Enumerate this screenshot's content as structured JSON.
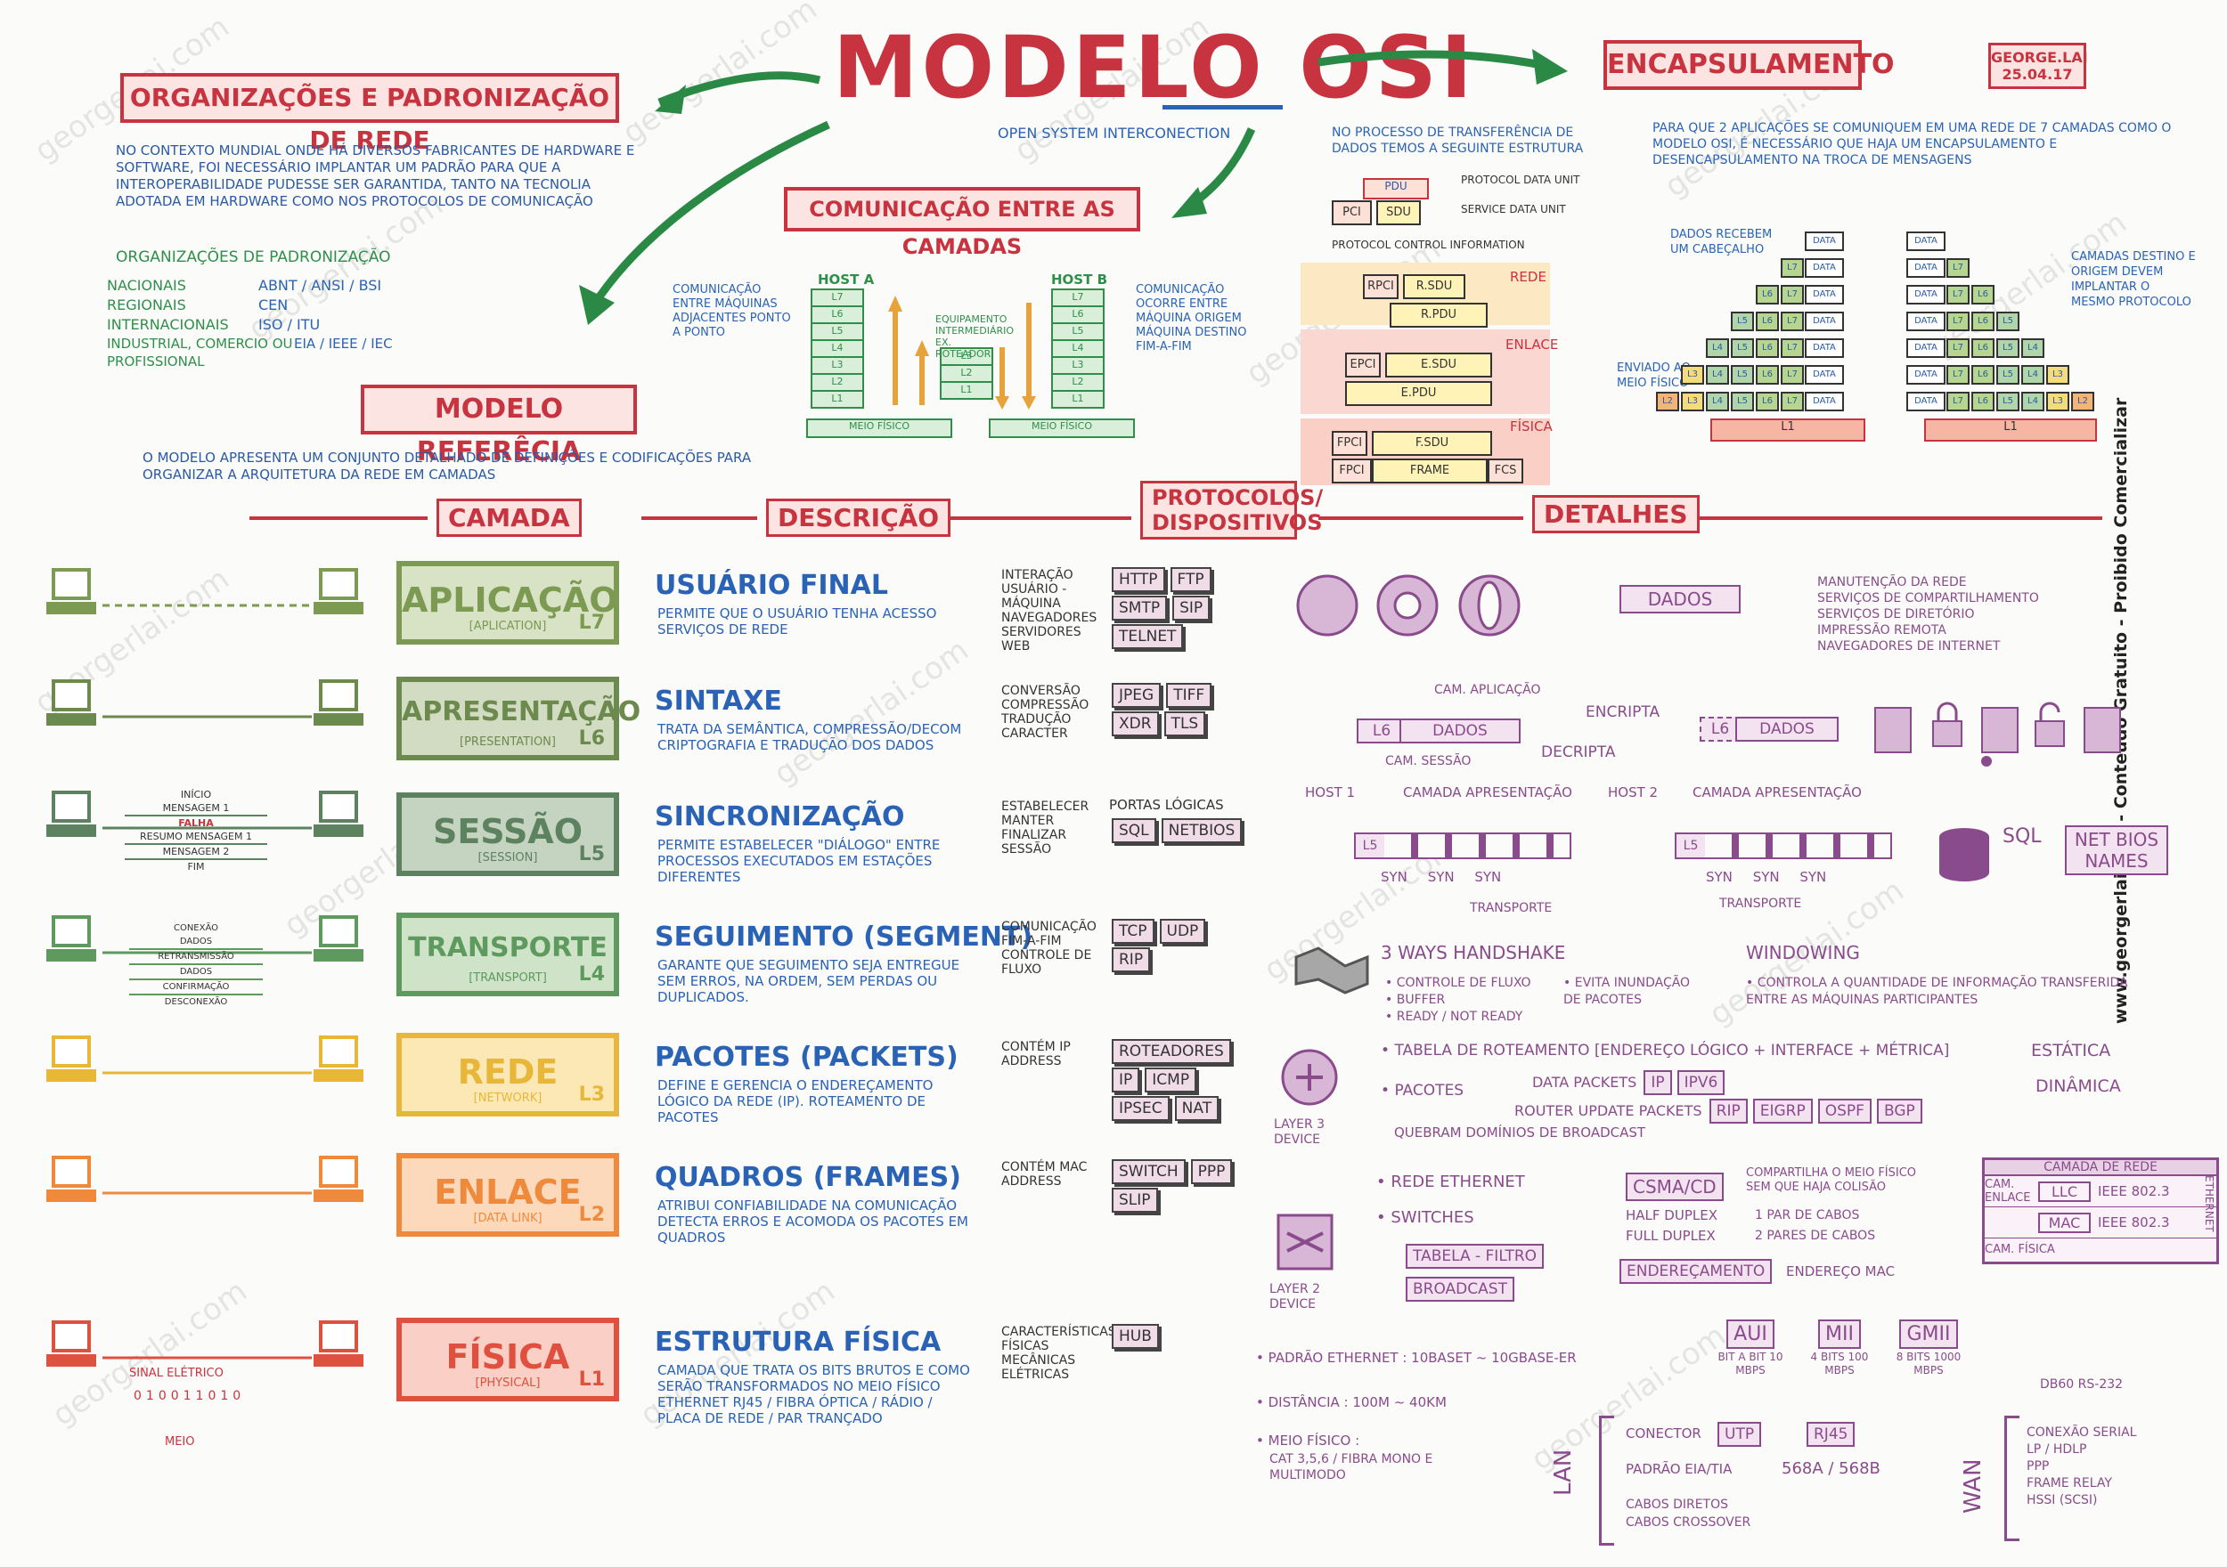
{
  "title": "MODELO OSI",
  "subtitle": "OPEN SYSTEM INTERCONECTION",
  "author": {
    "name": "GEORGE.LAI",
    "date": "25.04.17"
  },
  "side_credit": "www.georgerlai.com - Conteúdo Gratuito - Proibido Comercializar",
  "watermark": "georgerlai.com",
  "colors": {
    "red": "#c7343f",
    "blue": "#2a63b5",
    "purple": "#8a4b8c",
    "green": "#2f8f4a"
  },
  "org": {
    "title": "ORGANIZAÇÕES E PADRONIZAÇÃO DE REDE",
    "text": "NO CONTEXTO MUNDIAL ONDE HÁ DIVERSOS FABRICANTES DE HARDWARE E SOFTWARE, FOI NECESSÁRIO IMPLANTAR UM PADRÃO PARA QUE A INTEROPERABILIDADE PUDESSE SER GARANTIDA, TANTO NA TECNOLIA ADOTADA EM HARDWARE COMO NOS PROTOCOLOS DE COMUNICAÇÃO",
    "list_title": "ORGANIZAÇÕES DE PADRONIZAÇÃO",
    "items": [
      {
        "label": "NACIONAIS",
        "value": "ABNT / ANSI / BSI"
      },
      {
        "label": "REGIONAIS",
        "value": "CEN"
      },
      {
        "label": "INTERNACIONAIS",
        "value": "ISO / ITU"
      },
      {
        "label": "INDUSTRIAL, COMERCIO OU PROFISSIONAL",
        "value": "EIA / IEEE / IEC"
      }
    ]
  },
  "comm": {
    "title": "COMUNICAÇÃO ENTRE AS CAMADAS",
    "left_note": "COMUNICAÇÃO ENTRE MÁQUINAS ADJACENTES PONTO A PONTO",
    "host_a": "HOST A",
    "host_b": "HOST B",
    "layers": [
      "L7",
      "L6",
      "L5",
      "L4",
      "L3",
      "L2",
      "L1"
    ],
    "router_note": "EQUIPAMENTO INTERMEDIÁRIO EX. ROTEADOR",
    "router_layers": [
      "L3",
      "L2",
      "L1"
    ],
    "meio": "MEIO FÍSICO",
    "right_note": "COMUNICAÇÃO OCORRE ENTRE MÁQUINA ORIGEM MÁQUINA DESTINO FIM-A-FIM"
  },
  "ref": {
    "title": "MODELO REFERÊCIA",
    "text": "O MODELO APRESENTA UM CONJUNTO DETALHADO DE DEFINIÇÕES E CODIFICAÇÕES PARA ORGANIZAR A ARQUITETURA DA REDE EM CAMADAS"
  },
  "pdu": {
    "intro": "NO PROCESSO DE TRANSFERÊNCIA DE DADOS TEMOS A SEGUINTE ESTRUTURA",
    "pdu": "PDU",
    "pdu_label": "PROTOCOL DATA UNIT",
    "pci": "PCI",
    "sdu": "SDU",
    "sdu_label": "SERVICE DATA UNIT",
    "pci_label": "PROTOCOL CONTROL INFORMATION",
    "rede": "REDE",
    "enlace": "ENLACE",
    "fisica": "FÍSICA",
    "rpci": "RPCI",
    "rsdu": "R.SDU",
    "rpdu": "R.PDU",
    "epci": "EPCI",
    "esdu": "E.SDU",
    "epdu": "E.PDU",
    "fpci": "FPCI",
    "fsdu": "F.SDU",
    "frame": "FRAME",
    "fcs": "FCS"
  },
  "encap": {
    "title": "ENCAPSULAMENTO",
    "text": "PARA QUE 2 APLICAÇÕES SE COMUNIQUEM EM UMA REDE DE 7 CAMADAS COMO O MODELO OSI, É NECESSÁRIO QUE HAJA UM ENCAPSULAMENTO E DESENCAPSULAMENTO NA TROCA DE MENSAGENS",
    "note1": "DADOS RECEBEM UM CABEÇALHO",
    "note2": "ENVIADO AO MEIO FÍSICO",
    "note3": "CAMADAS DESTINO E ORIGEM DEVEM IMPLANTAR O MESMO PROTOCOLO",
    "data": "DATA",
    "l1": "L1"
  },
  "headers": {
    "camada": "CAMADA",
    "descricao": "DESCRIÇÃO",
    "protocolos": "PROTOCOLOS/ DISPOSITIVOS",
    "detalhes": "DETALHES"
  },
  "layers": [
    {
      "name": "APLICAÇÃO",
      "sub": "[APLICATION]",
      "tag": "L7",
      "color": "#7d9a52",
      "bg": "#d7e3c4",
      "desc_title": "USUÁRIO FINAL",
      "desc": "PERMITE QUE O USUÁRIO TENHA ACESSO SERVIÇOS DE REDE",
      "proto_list": [
        "INTERAÇÃO USUÁRIO - MÁQUINA",
        "NAVEGADORES",
        "SERVIDORES WEB"
      ],
      "chips": [
        "HTTP",
        "FTP",
        "SMTP",
        "SIP",
        "TELNET"
      ]
    },
    {
      "name": "APRESENTAÇÃO",
      "sub": "[PRESENTATION]",
      "tag": "L6",
      "color": "#6d8a4e",
      "bg": "#d2dcc3",
      "desc_title": "SINTAXE",
      "desc": "TRATA DA SEMÂNTICA, COMPRESSÃO/DECOM CRIPTOGRAFIA E TRADUÇÃO DOS DADOS",
      "proto_list": [
        "CONVERSÃO",
        "COMPRESSÃO",
        "TRADUÇÃO CARACTER"
      ],
      "chips": [
        "JPEG",
        "TIFF",
        "XDR",
        "TLS"
      ]
    },
    {
      "name": "SESSÃO",
      "sub": "[SESSION]",
      "tag": "L5",
      "color": "#5d8260",
      "bg": "#c4d4c1",
      "desc_title": "SINCRONIZAÇÃO",
      "desc": "PERMITE ESTABELECER \"DIÁLOGO\" ENTRE PROCESSOS EXECUTADOS EM ESTAÇÕES DIFERENTES",
      "proto_list": [
        "ESTABELECER MANTER FINALIZAR SESSÃO"
      ],
      "chips_label": "PORTAS LÓGICAS",
      "chips": [
        "SQL",
        "NETBIOS"
      ]
    },
    {
      "name": "TRANSPORTE",
      "sub": "[TRANSPORT]",
      "tag": "L4",
      "color": "#5e9a5e",
      "bg": "#cfe3c9",
      "desc_title": "SEGUIMENTO (SEGMENT)",
      "desc": "GARANTE QUE SEGUIMENTO SEJA ENTREGUE SEM ERROS, NA ORDEM, SEM PERDAS OU DUPLICADOS.",
      "proto_list": [
        "COMUNICAÇÃO FIM-A-FIM",
        "CONTROLE DE FLUXO"
      ],
      "chips": [
        "TCP",
        "UDP",
        "RIP"
      ]
    },
    {
      "name": "REDE",
      "sub": "[NETWORK]",
      "tag": "L3",
      "color": "#e8b73a",
      "bg": "#fbe8b5",
      "desc_title": "PACOTES (PACKETS)",
      "desc": "DEFINE E GERENCIA O ENDEREÇAMENTO LÓGICO DA REDE (IP). ROTEAMENTO DE PACOTES",
      "proto_list": [
        "CONTÉM IP ADDRESS"
      ],
      "chips": [
        "ROTEADORES",
        "IP",
        "ICMP",
        "IPSEC",
        "NAT"
      ]
    },
    {
      "name": "ENLACE",
      "sub": "[DATA LINK]",
      "tag": "L2",
      "color": "#ef8a3c",
      "bg": "#fcd9bb",
      "desc_title": "QUADROS (FRAMES)",
      "desc": "ATRIBUI CONFIABILIDADE NA COMUNICAÇÃO DETECTA ERROS E ACOMODA OS PACOTES EM QUADROS",
      "proto_list": [
        "CONTÉM MAC ADDRESS"
      ],
      "chips": [
        "SWITCH",
        "PPP",
        "SLIP"
      ]
    },
    {
      "name": "FÍSICA",
      "sub": "[PHYSICAL]",
      "tag": "L1",
      "color": "#e0503e",
      "bg": "#f9cfc6",
      "desc_title": "ESTRUTURA FÍSICA",
      "desc": "CAMADA QUE TRATA OS BITS BRUTOS E COMO SERÃO TRANSFORMADOS NO MEIO FÍSICO ETHERNET RJ45 / FIBRA ÓPTICA / RÁDIO / PLACA DE REDE / PAR TRANÇADO",
      "proto_list": [
        "CARACTERÍSTICAS FÍSICAS MECÂNICAS ELÉTRICAS"
      ],
      "chips": [
        "HUB"
      ]
    }
  ],
  "left_icons": {
    "l5_msgs": [
      "INÍCIO",
      "MENSAGEM 1",
      "FALHA",
      "RESUMO MENSAGEM 1",
      "MENSAGEM 2",
      "FIM"
    ],
    "l4_msgs": [
      "CONEXÃO",
      "DADOS",
      "RETRANSMISSÃO",
      "DADOS",
      "CONFIRMAÇÃO",
      "DESCONEXÃO"
    ],
    "l1_label": "SINAL ELÉTRICO",
    "l1_bits": "010011010",
    "l1_meio": "MEIO"
  },
  "details": {
    "l7_box": "DADOS",
    "l7_list": [
      "MANUTENÇÃO DA REDE",
      "SERVIÇOS DE COMPARTILHAMENTO",
      "SERVIÇOS DE DIRETÓRIO",
      "IMPRESSÃO REMOTA",
      "NAVEGADORES DE INTERNET"
    ],
    "l6_cam_app": "CAM. APLICAÇÃO",
    "l6_cam_sess": "CAM. SESSÃO",
    "l6_l6": "L6",
    "l6_dados": "DADOS",
    "l6_encrypt": "ENCRIPTA",
    "l6_decrypt": "DECRIPTA",
    "l5_host1": "HOST 1",
    "l5_host2": "HOST 2",
    "l5_cam": "CAMADA APRESENTAÇÃO",
    "l5_l5": "L5",
    "l5_syn": "SYN",
    "l5_transp": "TRANSPORTE",
    "l5_sql": "SQL",
    "l5_netbios": "NET BIOS NAMES",
    "l4_hs": "3 WAYS HANDSHAKE",
    "l4_hs_list": [
      "CONTROLE DE FLUXO",
      "BUFFER",
      "READY / NOT READY"
    ],
    "l4_hs_list2": "EVITA INUNDAÇÃO DE PACOTES",
    "l4_win": "WINDOWING",
    "l4_win_text": "CONTROLA A QUANTIDADE DE INFORMAÇÃO TRANSFERIDA ENTRE AS MÁQUINAS PARTICIPANTES",
    "l3_device": "LAYER 3 DEVICE",
    "l3_line1": "TABELA DE ROTEAMENTO [ENDEREÇO LÓGICO + INTERFACE + MÉTRICA]",
    "l3_estatica": "ESTÁTICA",
    "l3_dinamica": "DINÂMICA",
    "l3_pacotes": "PACOTES",
    "l3_dp": "DATA PACKETS",
    "l3_dp_chips": [
      "IP",
      "IPV6"
    ],
    "l3_rup": "ROUTER UPDATE PACKETS",
    "l3_rup_chips": [
      "RIP",
      "EIGRP",
      "OSPF",
      "BGP"
    ],
    "l3_broadcast": "QUEBRAM DOMÍNIOS DE BROADCAST",
    "l2_device": "LAYER 2 DEVICE",
    "l2_eth": "REDE ETHERNET",
    "l2_csma": "CSMA/CD",
    "l2_csma_note": "COMPARTILHA O MEIO FÍSICO SEM QUE HAJA COLISÃO",
    "l2_half": "HALF DUPLEX",
    "l2_half_note": "1 PAR DE CABOS",
    "l2_full": "FULL DUPLEX",
    "l2_full_note": "2 PARES DE CABOS",
    "l2_switches": "SWITCHES",
    "l2_tabela": "TABELA - FILTRO",
    "l2_broadcast": "BROADCAST",
    "l2_end": "ENDEREÇAMENTO",
    "l2_end_mac": "ENDEREÇO MAC",
    "l2_table": {
      "header": "CAMADA DE REDE",
      "rows": [
        [
          "CAM. ENLACE",
          "LLC",
          "IEEE 802.3"
        ],
        [
          "",
          "MAC",
          "IEEE 802.3"
        ],
        [
          "CAM. FÍSICA",
          "",
          ""
        ]
      ],
      "side": "ETHERNET"
    },
    "l1_padrao": "PADRÃO ETHERNET : 10BASET ~ 10GBASE-ER",
    "l1_dist": "DISTÂNCIA : 100M ~ 40KM",
    "l1_meio": "MEIO FÍSICO :",
    "l1_meio_text": "CAT 3,5,6 / FIBRA MONO E MULTIMODO",
    "l1_chips": [
      {
        "name": "AUI",
        "rate": "BIT A BIT 10 MBPS"
      },
      {
        "name": "MII",
        "rate": "4 BITS 100 MBPS"
      },
      {
        "name": "GMII",
        "rate": "8 BITS 1000 MBPS"
      }
    ],
    "l1_db": "DB60  RS-232",
    "l1_lan": "LAN",
    "l1_wan": "WAN",
    "l1_conector": "CONECTOR",
    "l1_utp": "UTP",
    "l1_rj45": "RJ45",
    "l1_padrao_eia": "PADRÃO EIA/TIA",
    "l1_568": "568A / 568B",
    "l1_cabos": [
      "CABOS DIRETOS",
      "CABOS CROSSOVER"
    ],
    "l1_wan_list": [
      "CONEXÃO SERIAL",
      "LP / HDLP",
      "PPP",
      "FRAME RELAY",
      "HSSI (SCSI)"
    ]
  }
}
